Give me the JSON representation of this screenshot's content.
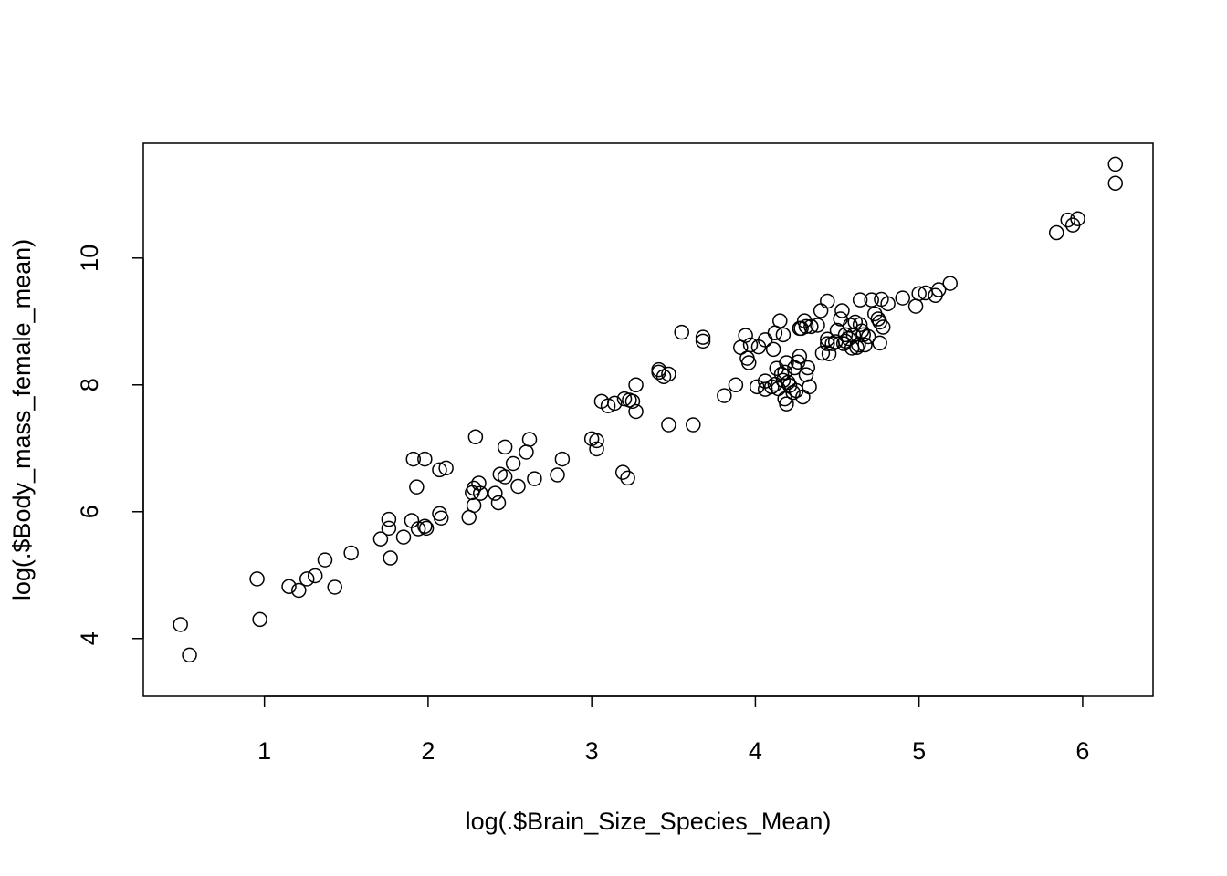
{
  "chart_data": {
    "type": "scatter",
    "x_label": "log(.$Brain_Size_Species_Mean)",
    "y_label": "log(.$Body_mass_female_mean)",
    "color": "#000000",
    "xlim": [
      0.26,
      6.43
    ],
    "ylim": [
      3.09,
      11.81
    ],
    "xticks": [
      1,
      2,
      3,
      4,
      5,
      6
    ],
    "yticks": [
      4,
      6,
      8,
      10
    ],
    "x": [
      0.487,
      0.542,
      0.955,
      0.972,
      1.15,
      1.21,
      1.26,
      1.31,
      1.37,
      1.43,
      1.53,
      1.71,
      1.76,
      1.76,
      1.77,
      1.85,
      1.9,
      1.91,
      1.93,
      1.94,
      1.98,
      1.98,
      1.99,
      2.07,
      2.07,
      2.08,
      2.11,
      2.25,
      2.27,
      2.28,
      2.28,
      2.29,
      2.31,
      2.32,
      2.41,
      2.43,
      2.44,
      2.47,
      2.47,
      2.52,
      2.55,
      2.6,
      2.62,
      2.65,
      2.79,
      2.82,
      3.0,
      3.03,
      3.03,
      3.06,
      3.1,
      3.14,
      3.19,
      3.2,
      3.22,
      3.23,
      3.25,
      3.27,
      3.27,
      3.41,
      3.41,
      3.44,
      3.47,
      3.47,
      3.55,
      3.62,
      3.68,
      3.68,
      3.81,
      3.88,
      3.91,
      3.94,
      3.95,
      3.96,
      3.97,
      4.01,
      4.02,
      4.06,
      4.06,
      4.06,
      4.1,
      4.11,
      4.12,
      4.12,
      4.13,
      4.14,
      4.15,
      4.16,
      4.17,
      4.17,
      4.18,
      4.18,
      4.19,
      4.19,
      4.2,
      4.21,
      4.23,
      4.24,
      4.25,
      4.26,
      4.27,
      4.27,
      4.28,
      4.29,
      4.3,
      4.31,
      4.31,
      4.32,
      4.33,
      4.34,
      4.38,
      4.4,
      4.41,
      4.44,
      4.44,
      4.44,
      4.45,
      4.47,
      4.49,
      4.5,
      4.52,
      4.53,
      4.54,
      4.55,
      4.55,
      4.57,
      4.58,
      4.59,
      4.6,
      4.61,
      4.62,
      4.63,
      4.64,
      4.64,
      4.65,
      4.66,
      4.67,
      4.69,
      4.71,
      4.73,
      4.75,
      4.76,
      4.76,
      4.77,
      4.78,
      4.81,
      4.9,
      4.98,
      5.0,
      5.04,
      5.1,
      5.12,
      5.19,
      5.84,
      5.91,
      5.94,
      5.97,
      6.2,
      6.2
    ],
    "values": [
      4.22,
      3.74,
      4.94,
      4.3,
      4.82,
      4.76,
      4.94,
      4.99,
      5.24,
      4.81,
      5.35,
      5.57,
      5.88,
      5.74,
      5.27,
      5.6,
      5.86,
      6.83,
      6.39,
      5.73,
      6.83,
      5.77,
      5.74,
      6.66,
      5.97,
      5.9,
      6.69,
      5.91,
      6.3,
      6.1,
      6.37,
      7.18,
      6.45,
      6.29,
      6.29,
      6.14,
      6.59,
      7.02,
      6.55,
      6.76,
      6.4,
      6.94,
      7.14,
      6.52,
      6.58,
      6.83,
      7.15,
      7.12,
      6.99,
      7.74,
      7.67,
      7.71,
      6.62,
      7.78,
      6.53,
      7.76,
      7.74,
      8.0,
      7.58,
      8.24,
      8.2,
      8.13,
      8.17,
      7.37,
      8.83,
      7.37,
      8.69,
      8.75,
      7.83,
      8.0,
      8.59,
      8.78,
      8.42,
      8.35,
      8.63,
      7.97,
      8.6,
      8.71,
      8.06,
      7.93,
      7.97,
      8.56,
      8.01,
      8.82,
      8.26,
      7.94,
      9.01,
      8.17,
      8.79,
      8.07,
      8.2,
      7.78,
      7.7,
      8.35,
      8.04,
      7.99,
      7.88,
      8.27,
      7.91,
      8.36,
      8.45,
      8.89,
      8.89,
      7.81,
      9.01,
      8.92,
      8.16,
      8.27,
      7.97,
      8.92,
      8.94,
      9.17,
      8.5,
      9.32,
      8.72,
      8.65,
      8.49,
      8.65,
      8.68,
      8.86,
      9.04,
      9.17,
      8.65,
      8.69,
      8.79,
      8.73,
      8.94,
      8.58,
      8.78,
      8.99,
      8.59,
      8.63,
      9.34,
      8.95,
      8.85,
      8.79,
      8.63,
      8.76,
      9.34,
      9.12,
      9.04,
      8.66,
      8.99,
      9.35,
      8.91,
      9.28,
      9.37,
      9.24,
      9.44,
      9.45,
      9.41,
      9.5,
      9.6,
      10.4,
      10.6,
      10.52,
      10.62,
      11.18,
      11.48
    ]
  }
}
